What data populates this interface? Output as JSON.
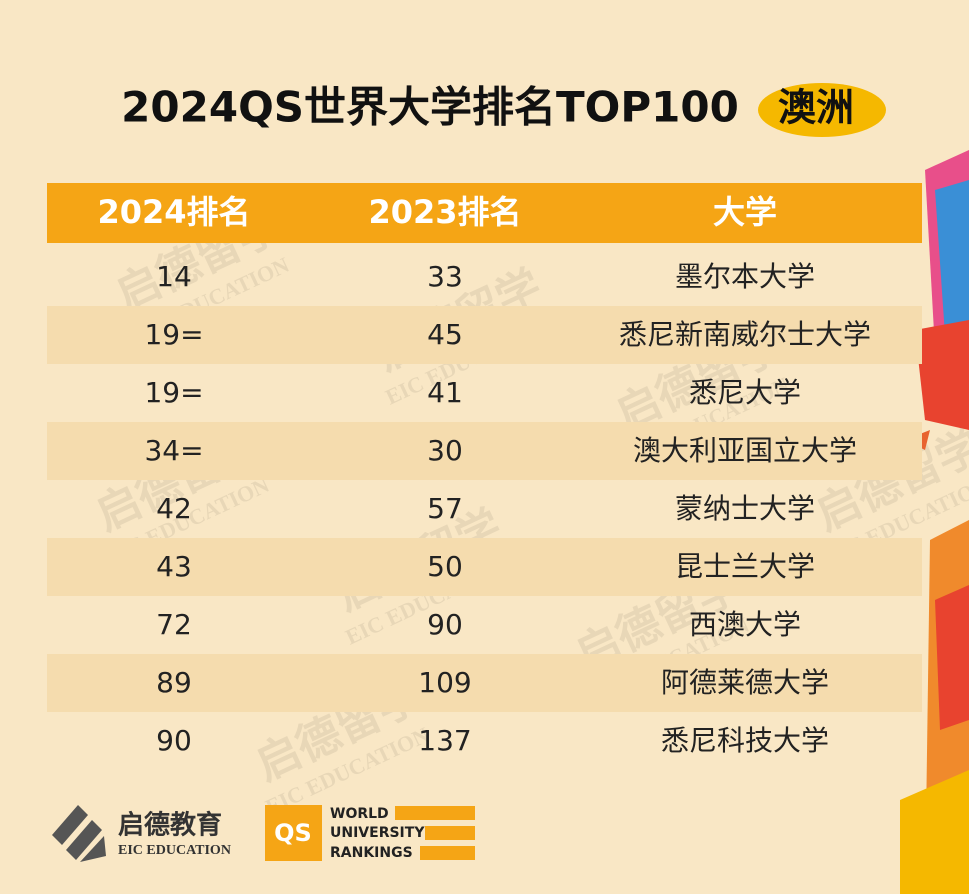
{
  "header": {
    "title": "2024QS世界大学排名TOP100",
    "badge": "澳洲"
  },
  "table": {
    "columns": [
      "2024排名",
      "2023排名",
      "大学"
    ],
    "rows": [
      [
        "14",
        "33",
        "墨尔本大学"
      ],
      [
        "19=",
        "45",
        "悉尼新南威尔士大学"
      ],
      [
        "19=",
        "41",
        "悉尼大学"
      ],
      [
        "34=",
        "30",
        "澳大利亚国立大学"
      ],
      [
        "42",
        "57",
        "蒙纳士大学"
      ],
      [
        "43",
        "50",
        "昆士兰大学"
      ],
      [
        "72",
        "90",
        "西澳大学"
      ],
      [
        "89",
        "109",
        "阿德莱德大学"
      ],
      [
        "90",
        "137",
        "悉尼科技大学"
      ]
    ]
  },
  "watermark": {
    "cn": "启德留学",
    "en": "EIC EDUCATION"
  },
  "footer": {
    "eic_cn": "启德教育",
    "eic_en": "EIC EDUCATION",
    "qs": "QS",
    "qs_lines": [
      "WORLD",
      "UNIVERSITY",
      "RANKINGS"
    ]
  }
}
